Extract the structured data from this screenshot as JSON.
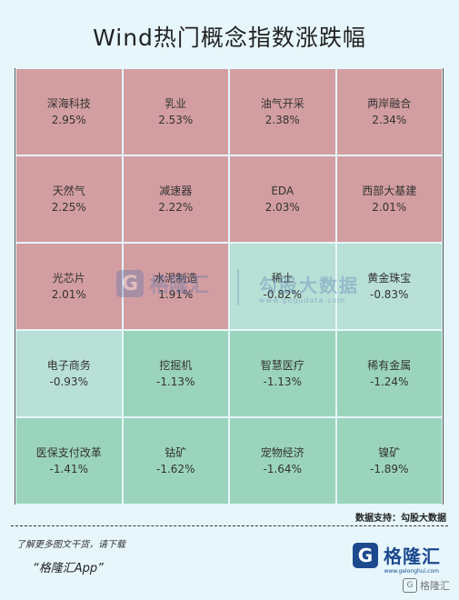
{
  "title": "Wind热门概念指数涨跌幅",
  "colors": {
    "up": "#d39ea1",
    "mild_down": "#b8e0d6",
    "down": "#9bd4bd",
    "background": "#e6f6fb"
  },
  "tiles": [
    {
      "name": "深海科技",
      "pct": "2.95%",
      "tone": "up"
    },
    {
      "name": "乳业",
      "pct": "2.53%",
      "tone": "up"
    },
    {
      "name": "油气开采",
      "pct": "2.38%",
      "tone": "up"
    },
    {
      "name": "两岸融合",
      "pct": "2.34%",
      "tone": "up"
    },
    {
      "name": "天然气",
      "pct": "2.25%",
      "tone": "up"
    },
    {
      "name": "减速器",
      "pct": "2.22%",
      "tone": "up"
    },
    {
      "name": "EDA",
      "pct": "2.03%",
      "tone": "up"
    },
    {
      "name": "西部大基建",
      "pct": "2.01%",
      "tone": "up"
    },
    {
      "name": "光芯片",
      "pct": "2.01%",
      "tone": "up"
    },
    {
      "name": "水泥制造",
      "pct": "1.91%",
      "tone": "up"
    },
    {
      "name": "稀土",
      "pct": "-0.82%",
      "tone": "mild_down"
    },
    {
      "name": "黄金珠宝",
      "pct": "-0.83%",
      "tone": "mild_down"
    },
    {
      "name": "电子商务",
      "pct": "-0.93%",
      "tone": "mild_down"
    },
    {
      "name": "挖掘机",
      "pct": "-1.13%",
      "tone": "down"
    },
    {
      "name": "智慧医疗",
      "pct": "-1.13%",
      "tone": "down"
    },
    {
      "name": "稀有金属",
      "pct": "-1.24%",
      "tone": "down"
    },
    {
      "name": "医保支付改革",
      "pct": "-1.41%",
      "tone": "down"
    },
    {
      "name": "钴矿",
      "pct": "-1.62%",
      "tone": "down"
    },
    {
      "name": "宠物经济",
      "pct": "-1.64%",
      "tone": "down"
    },
    {
      "name": "镍矿",
      "pct": "-1.89%",
      "tone": "down"
    }
  ],
  "source": "数据支持：勾股大数据",
  "footer": {
    "line": "了解更多图文干货，请下载",
    "app": "“格隆汇App”",
    "logo_text": "格隆汇",
    "logo_sub": "www.gelonghui.com",
    "corner_mark": "格隆汇"
  },
  "watermarks": {
    "left_text": "格隆汇",
    "right_text": "勾股大数据",
    "right_url": "www.gogudata.com"
  }
}
